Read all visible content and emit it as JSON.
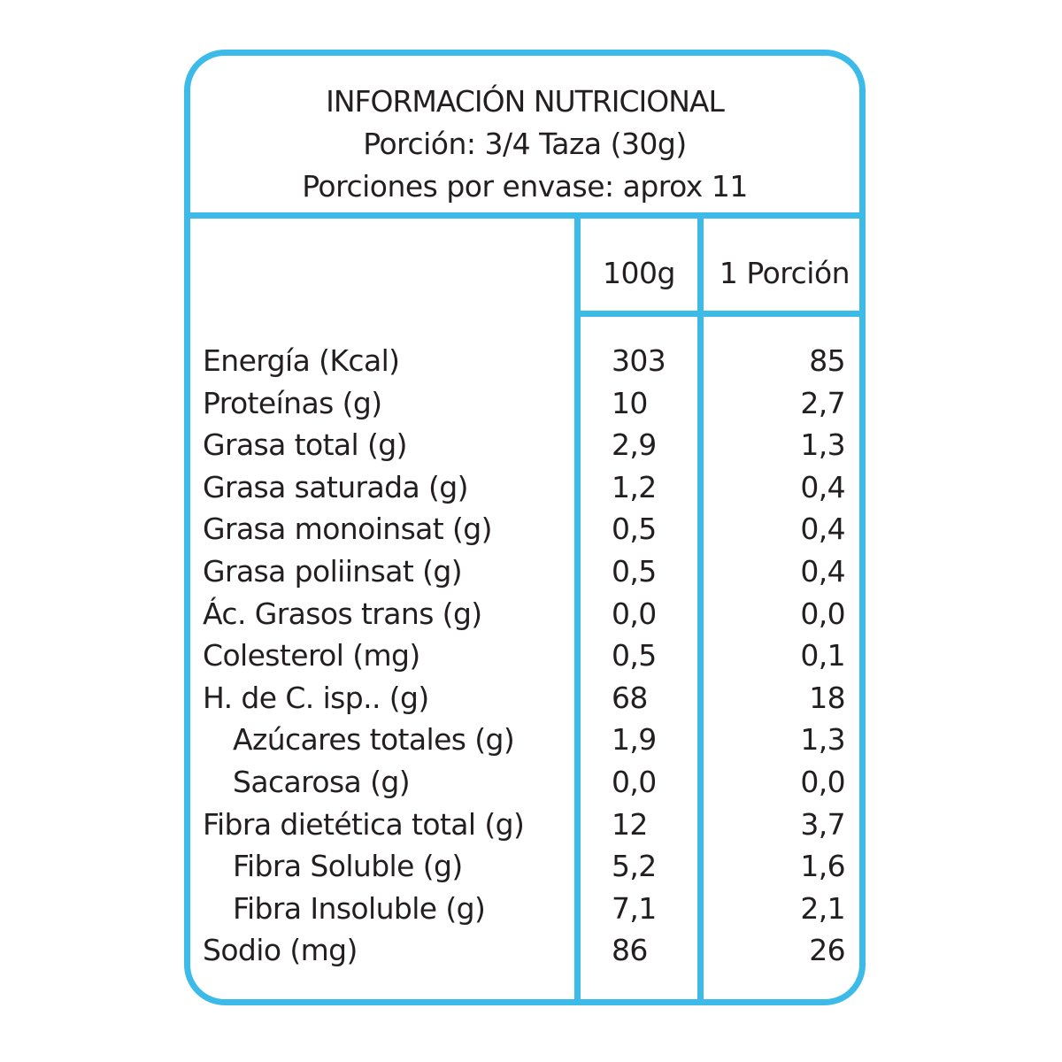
{
  "header": {
    "title": "INFORMACIÓN NUTRICIONAL",
    "serving": "Porción: 3/4 Taza (30g)",
    "servings_per_container": "Porciones por envase: aprox 11"
  },
  "columns": {
    "per_100g": "100g",
    "per_portion": "1 Porción"
  },
  "rows": [
    {
      "name": "Energía (Kcal)",
      "per_100g": "303",
      "per_portion": "85",
      "indent": false
    },
    {
      "name": "Proteínas (g)",
      "per_100g": "10",
      "per_portion": "2,7",
      "indent": false
    },
    {
      "name": "Grasa total (g)",
      "per_100g": "2,9",
      "per_portion": "1,3",
      "indent": false
    },
    {
      "name": "Grasa saturada (g)",
      "per_100g": "1,2",
      "per_portion": "0,4",
      "indent": false
    },
    {
      "name": "Grasa monoinsat (g)",
      "per_100g": "0,5",
      "per_portion": "0,4",
      "indent": false
    },
    {
      "name": "Grasa poliinsat (g)",
      "per_100g": "0,5",
      "per_portion": "0,4",
      "indent": false
    },
    {
      "name": "Ác. Grasos trans (g)",
      "per_100g": "0,0",
      "per_portion": "0,0",
      "indent": false
    },
    {
      "name": "Colesterol (mg)",
      "per_100g": "0,5",
      "per_portion": "0,1",
      "indent": false
    },
    {
      "name": "H. de C.  isp.. (g)",
      "per_100g": "68",
      "per_portion": "18",
      "indent": false
    },
    {
      "name": "Azúcares totales (g)",
      "per_100g": "1,9",
      "per_portion": "1,3",
      "indent": true
    },
    {
      "name": "Sacarosa (g)",
      "per_100g": "0,0",
      "per_portion": "0,0",
      "indent": true
    },
    {
      "name": "Fibra dietética total (g)",
      "per_100g": "12",
      "per_portion": "3,7",
      "indent": false
    },
    {
      "name": "Fibra Soluble (g)",
      "per_100g": "5,2",
      "per_portion": "1,6",
      "indent": true
    },
    {
      "name": "Fibra Insoluble (g)",
      "per_100g": "7,1",
      "per_portion": "2,1",
      "indent": true
    },
    {
      "name": "Sodio (mg)",
      "per_100g": "86",
      "per_portion": "26",
      "indent": false
    }
  ],
  "colors": {
    "border": "#3dbbe8",
    "text": "#231f20"
  }
}
